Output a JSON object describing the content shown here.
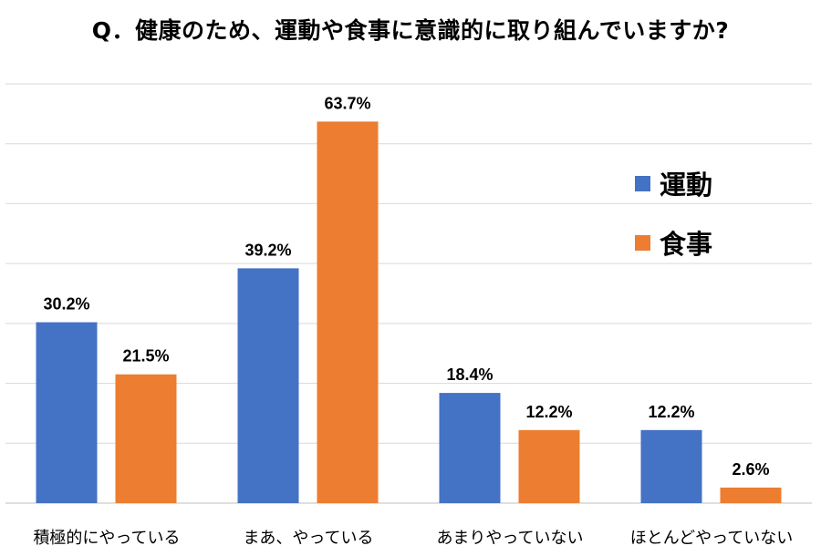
{
  "chart_data": {
    "type": "bar",
    "title": "Q．健康のため、運動や食事に意識的に取り組んでいますか?",
    "categories": [
      "積極的にやっている",
      "まあ、やっている",
      "あまりやっていない",
      "ほとんどやっていない"
    ],
    "series": [
      {
        "name": "運動",
        "values": [
          30.2,
          39.2,
          18.4,
          12.2
        ],
        "labels": [
          "30.2%",
          "39.2%",
          "18.4%",
          "12.2%"
        ],
        "color": "#4472C4"
      },
      {
        "name": "食事",
        "values": [
          21.5,
          63.7,
          12.2,
          2.6
        ],
        "labels": [
          "21.5%",
          "63.7%",
          "12.2%",
          "2.6%"
        ],
        "color": "#ED7D31"
      }
    ],
    "ylim": [
      0,
      70
    ],
    "grid": true,
    "legend": "right"
  }
}
